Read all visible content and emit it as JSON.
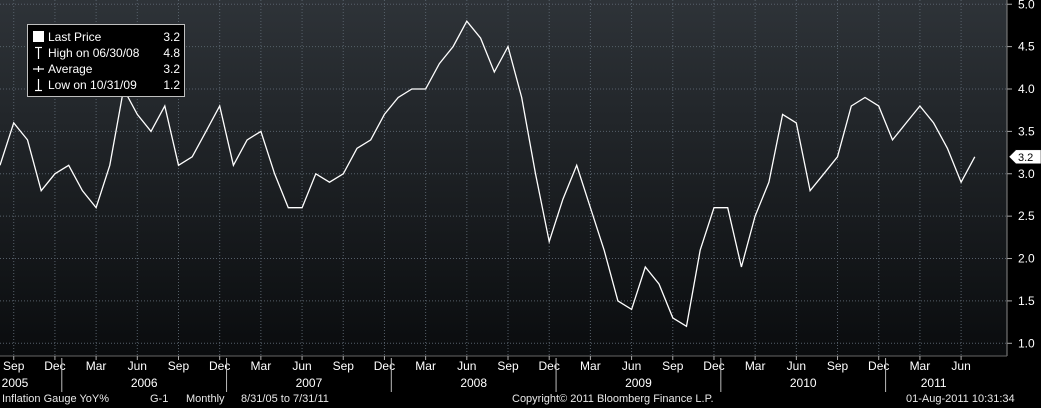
{
  "chart_data": {
    "type": "line",
    "y_ticks": [
      "5.0",
      "4.5",
      "4.0",
      "3.5",
      "3.0",
      "2.5",
      "2.0",
      "1.5",
      "1.0"
    ],
    "ylim": [
      0.85,
      5.05
    ],
    "grid": true,
    "months": [
      "Sep",
      "Dec",
      "Mar",
      "Jun",
      "Sep",
      "Dec",
      "Mar",
      "Jun",
      "Sep",
      "Dec",
      "Mar",
      "Jun",
      "Sep",
      "Dec",
      "Mar",
      "Jun",
      "Sep",
      "Dec",
      "Mar",
      "Jun",
      "Sep",
      "Dec",
      "Mar",
      "Jun"
    ],
    "years": [
      "2005",
      "2006",
      "2007",
      "2008",
      "2009",
      "2010",
      "2011"
    ],
    "x_start": "2005-08",
    "series": [
      {
        "values": [
          3.1,
          3.6,
          3.4,
          2.8,
          3.0,
          3.1,
          2.8,
          2.6,
          3.1,
          4.0,
          3.7,
          3.5,
          3.8,
          3.1,
          3.2,
          3.5,
          3.8,
          3.1,
          3.4,
          3.5,
          3.0,
          2.6,
          2.6,
          3.0,
          2.9,
          3.0,
          3.3,
          3.4,
          3.7,
          3.9,
          4.0,
          4.0,
          4.3,
          4.5,
          4.8,
          4.6,
          4.2,
          4.5,
          3.9,
          3.0,
          2.2,
          2.7,
          3.1,
          2.6,
          2.1,
          1.5,
          1.4,
          1.9,
          1.7,
          1.3,
          1.2,
          2.1,
          2.6,
          2.6,
          1.9,
          2.5,
          2.9,
          3.7,
          3.6,
          2.8,
          3.0,
          3.2,
          3.8,
          3.9,
          3.8,
          3.4,
          3.6,
          3.8,
          3.6,
          3.3,
          2.9,
          3.2
        ]
      }
    ],
    "last_price_tag": "3.2",
    "legend": [
      {
        "label": "Last Price",
        "value": "3.2"
      },
      {
        "label": "High on 06/30/08",
        "value": "4.8"
      },
      {
        "label": "Average",
        "value": "3.2"
      },
      {
        "label": "Low on 10/31/09",
        "value": "1.2"
      }
    ]
  },
  "footer": {
    "security": "Inflation Gauge YoY%",
    "chart_id": "G-1",
    "period": "Monthly",
    "range": "8/31/05 to 7/31/11",
    "copyright": "Copyright© 2011 Bloomberg Finance L.P.",
    "timestamp": "01-Aug-2011 10:31:34"
  },
  "colors": {
    "background_top": "#2e3338",
    "background_bottom": "#0a0c0e",
    "line": "#ffffff",
    "grid": "#56606a",
    "text": "#ffffff"
  }
}
